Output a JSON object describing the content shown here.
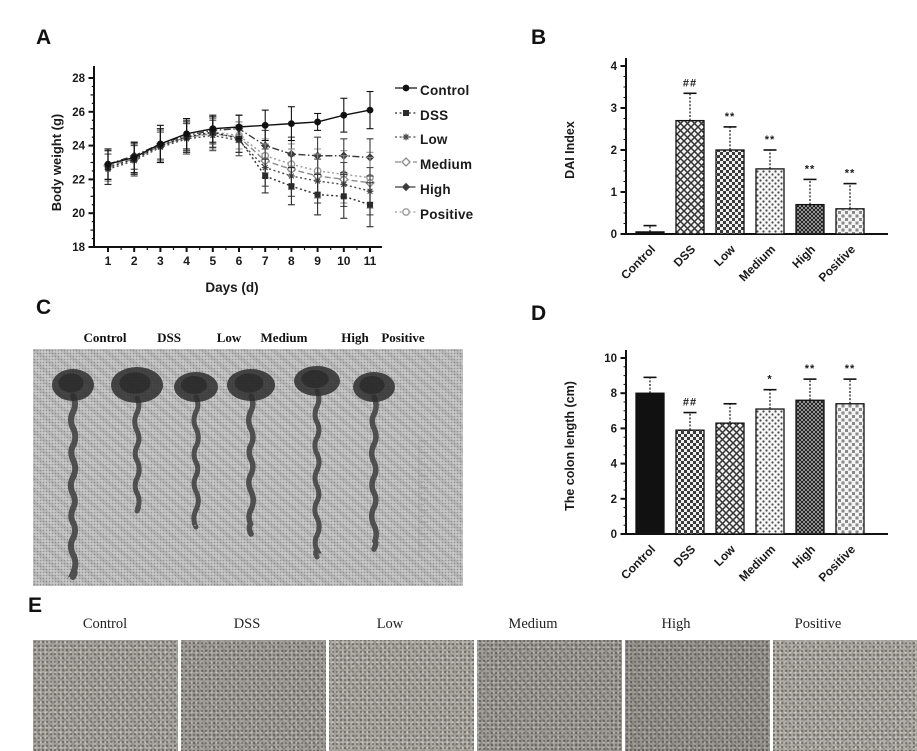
{
  "figure": {
    "panels": {
      "a": "A",
      "b": "B",
      "c": "C",
      "d": "D",
      "e": "E"
    }
  },
  "groups": [
    "Control",
    "DSS",
    "Low",
    "Medium",
    "High",
    "Positive"
  ],
  "panel_c": {
    "labels": [
      "Control",
      "DSS",
      "Low",
      "Medium",
      "High",
      "Positive"
    ]
  },
  "panel_e": {
    "labels": [
      "Control",
      "DSS",
      "Low",
      "Medium",
      "High",
      "Positive"
    ]
  },
  "chart_data": [
    {
      "id": "A",
      "type": "line",
      "title": "",
      "xlabel": "Days (d)",
      "ylabel": "Body weight (g)",
      "x": [
        1,
        2,
        3,
        4,
        5,
        6,
        7,
        8,
        9,
        10,
        11
      ],
      "ylim": [
        18,
        28
      ],
      "yticks": [
        18,
        20,
        22,
        24,
        26,
        28
      ],
      "legend_position": "right",
      "series": [
        {
          "name": "Control",
          "marker": "filled-circle",
          "line": "solid",
          "color": "#111111",
          "values": [
            22.9,
            23.3,
            24.1,
            24.7,
            25.0,
            25.1,
            25.2,
            25.3,
            25.4,
            25.8,
            26.1
          ],
          "errors": [
            0.9,
            0.9,
            1.1,
            0.9,
            0.8,
            0.7,
            0.9,
            1.0,
            0.5,
            1.0,
            1.1
          ]
        },
        {
          "name": "DSS",
          "marker": "filled-square",
          "line": "dotted",
          "color": "#2b2b2b",
          "values": [
            22.7,
            23.2,
            24.0,
            24.5,
            24.8,
            24.4,
            22.2,
            21.6,
            21.1,
            21.0,
            20.5
          ],
          "errors": [
            1.0,
            0.9,
            1.0,
            0.9,
            0.9,
            0.8,
            1.0,
            1.1,
            1.2,
            1.3,
            1.3
          ]
        },
        {
          "name": "Low",
          "marker": "star",
          "line": "dotted",
          "color": "#4a4a4a",
          "values": [
            22.6,
            23.1,
            23.9,
            24.4,
            24.6,
            24.3,
            22.7,
            22.2,
            21.9,
            21.7,
            21.3
          ],
          "errors": [
            0.9,
            0.9,
            0.9,
            0.9,
            0.9,
            0.9,
            1.1,
            1.2,
            1.3,
            1.3,
            1.4
          ]
        },
        {
          "name": "Medium",
          "marker": "open-diamond",
          "line": "dashed",
          "color": "#8c8c8c",
          "values": [
            22.8,
            23.2,
            24.0,
            24.5,
            24.7,
            24.5,
            23.1,
            22.6,
            22.2,
            22.0,
            21.8
          ],
          "errors": [
            0.9,
            0.9,
            0.9,
            0.9,
            0.9,
            0.9,
            1.0,
            1.2,
            1.3,
            1.4,
            1.5
          ]
        },
        {
          "name": "High",
          "marker": "filled-diamond",
          "line": "dashdot",
          "color": "#3c3c3c",
          "values": [
            22.9,
            23.4,
            24.1,
            24.6,
            24.9,
            25.0,
            24.0,
            23.5,
            23.4,
            23.4,
            23.3
          ],
          "errors": [
            0.9,
            0.8,
            0.9,
            0.9,
            0.8,
            0.8,
            0.9,
            1.0,
            1.1,
            1.0,
            1.1
          ]
        },
        {
          "name": "Positive",
          "marker": "open-circle",
          "line": "dotted",
          "color": "#9b9b9b",
          "values": [
            22.8,
            23.3,
            24.0,
            24.5,
            24.8,
            24.6,
            23.4,
            22.9,
            22.5,
            22.3,
            22.1
          ],
          "errors": [
            0.9,
            0.9,
            0.9,
            0.9,
            0.9,
            0.8,
            1.0,
            1.2,
            1.3,
            1.4,
            1.5
          ]
        }
      ]
    },
    {
      "id": "B",
      "type": "bar",
      "title": "",
      "xlabel": "",
      "ylabel": "DAI Index",
      "categories": [
        "Control",
        "DSS",
        "Low",
        "Medium",
        "High",
        "Positive"
      ],
      "values": [
        0.05,
        2.7,
        2.0,
        1.55,
        0.7,
        0.6
      ],
      "errors": [
        0.15,
        0.65,
        0.55,
        0.45,
        0.6,
        0.6
      ],
      "annotations": [
        "",
        "##",
        "**",
        "**",
        "**",
        "**"
      ],
      "patterns": [
        "solid",
        "cross",
        "checker",
        "dots",
        "fine",
        "light"
      ],
      "ylim": [
        0,
        4
      ],
      "yticks": [
        0,
        1,
        2,
        3,
        4
      ]
    },
    {
      "id": "D",
      "type": "bar",
      "title": "",
      "xlabel": "",
      "ylabel": "The colon length (cm)",
      "categories": [
        "Control",
        "DSS",
        "Low",
        "Medium",
        "High",
        "Positive"
      ],
      "values": [
        8.0,
        5.9,
        6.3,
        7.1,
        7.6,
        7.4
      ],
      "errors": [
        0.9,
        1.0,
        1.1,
        1.1,
        1.2,
        1.4
      ],
      "annotations": [
        "",
        "##",
        "",
        "*",
        "**",
        "**"
      ],
      "patterns": [
        "solid",
        "checker",
        "cross",
        "dots",
        "fine",
        "light"
      ],
      "ylim": [
        0,
        10
      ],
      "yticks": [
        0,
        2,
        4,
        6,
        8,
        10
      ]
    }
  ]
}
